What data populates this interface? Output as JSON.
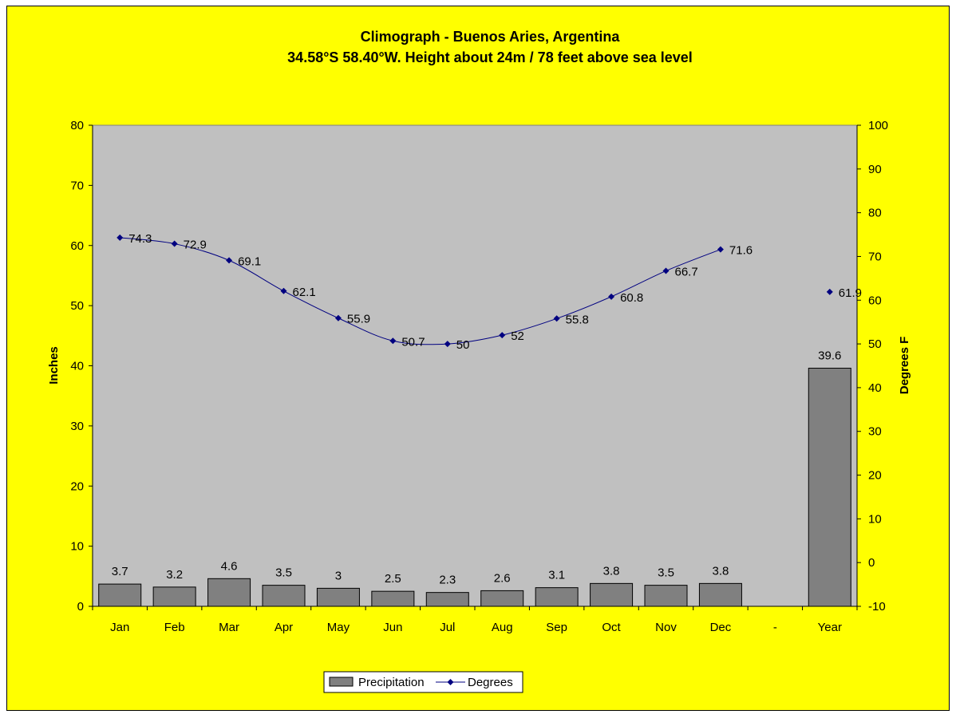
{
  "chart_data": {
    "type": "bar",
    "title": "Climograph - Buenos Aries, Argentina",
    "subtitle": "34.58°S 58.40°W. Height about 24m / 78 feet above sea level",
    "categories": [
      "Jan",
      "Feb",
      "Mar",
      "Apr",
      "May",
      "Jun",
      "Jul",
      "Aug",
      "Sep",
      "Oct",
      "Nov",
      "Dec",
      "-",
      "Year"
    ],
    "series": [
      {
        "name": "Precipitation",
        "type": "bar",
        "axis": "left",
        "values": [
          3.7,
          3.2,
          4.6,
          3.5,
          3,
          2.5,
          2.3,
          2.6,
          3.1,
          3.8,
          3.5,
          3.8,
          null,
          39.6
        ],
        "color": "#808080"
      },
      {
        "name": "Degrees",
        "type": "line",
        "axis": "right",
        "values": [
          74.3,
          72.9,
          69.1,
          62.1,
          55.9,
          50.7,
          50,
          52,
          55.8,
          60.8,
          66.7,
          71.6,
          null,
          61.9
        ],
        "color": "#000080"
      }
    ],
    "ylabel": "Inches",
    "ylim": [
      0,
      80
    ],
    "yticks": [
      "0",
      "10",
      "20",
      "30",
      "40",
      "50",
      "60",
      "70",
      "80"
    ],
    "y2label": "Degrees F",
    "y2lim": [
      -10,
      100
    ],
    "y2ticks": [
      "-10",
      "0",
      "10",
      "20",
      "30",
      "40",
      "50",
      "60",
      "70",
      "80",
      "90",
      "100"
    ],
    "grid": false,
    "legend_position": "bottom",
    "colors": {
      "chart_background": "#ffff00",
      "plot_background": "#c0c0c0",
      "bar_fill": "#808080",
      "line": "#000080"
    }
  }
}
